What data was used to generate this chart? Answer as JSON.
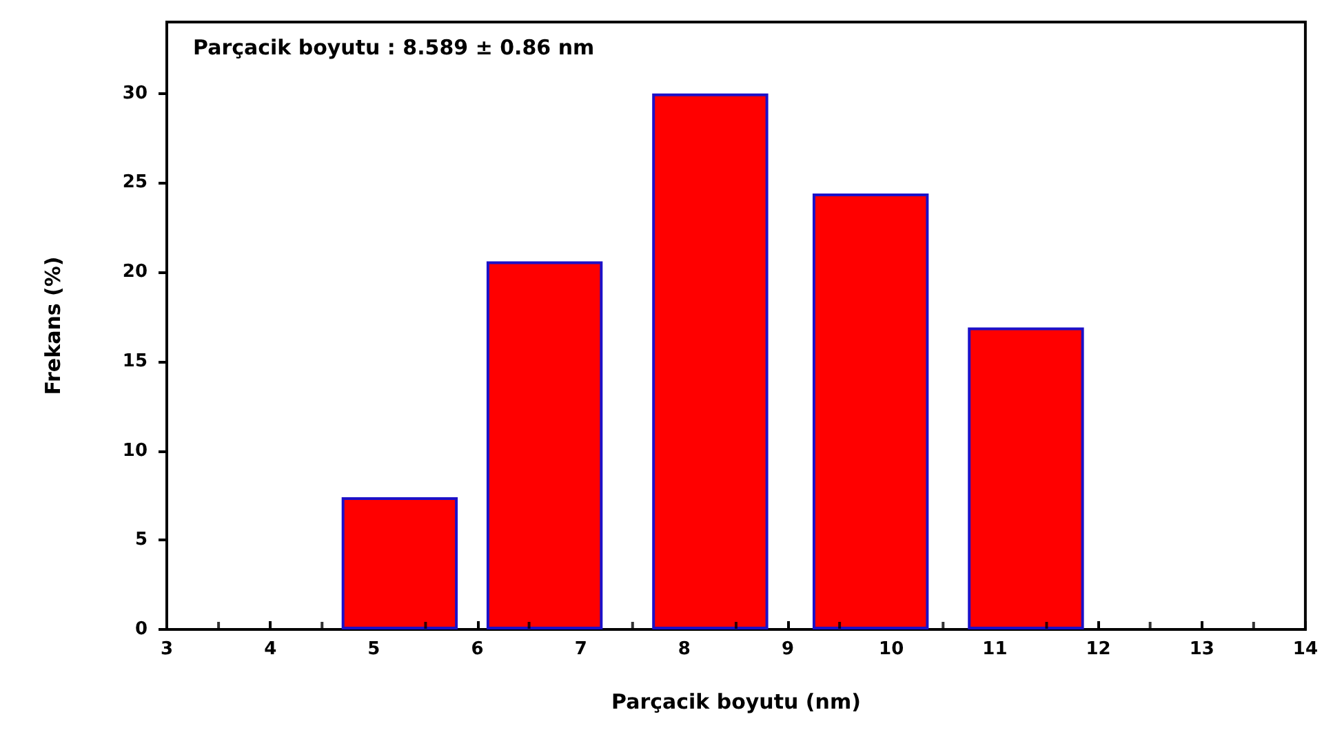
{
  "chart_data": {
    "type": "bar",
    "title": "Parçacik boyutu : 8.589 ± 0.86 nm",
    "xlabel": "Parçacik boyutu (nm)",
    "ylabel": "Frekans (%)",
    "x": [
      5.25,
      6.65,
      8.25,
      9.8,
      11.3
    ],
    "values": [
      7.4,
      20.6,
      30,
      24.4,
      16.9
    ],
    "color": "#ff0000",
    "xlim": [
      3,
      14
    ],
    "xticks": [
      3,
      4,
      5,
      6,
      7,
      8,
      9,
      10,
      11,
      12,
      13,
      14
    ],
    "ylim": [
      0,
      34
    ],
    "yticks": [
      0,
      5,
      10,
      15,
      20,
      25,
      30
    ],
    "grid": false
  }
}
